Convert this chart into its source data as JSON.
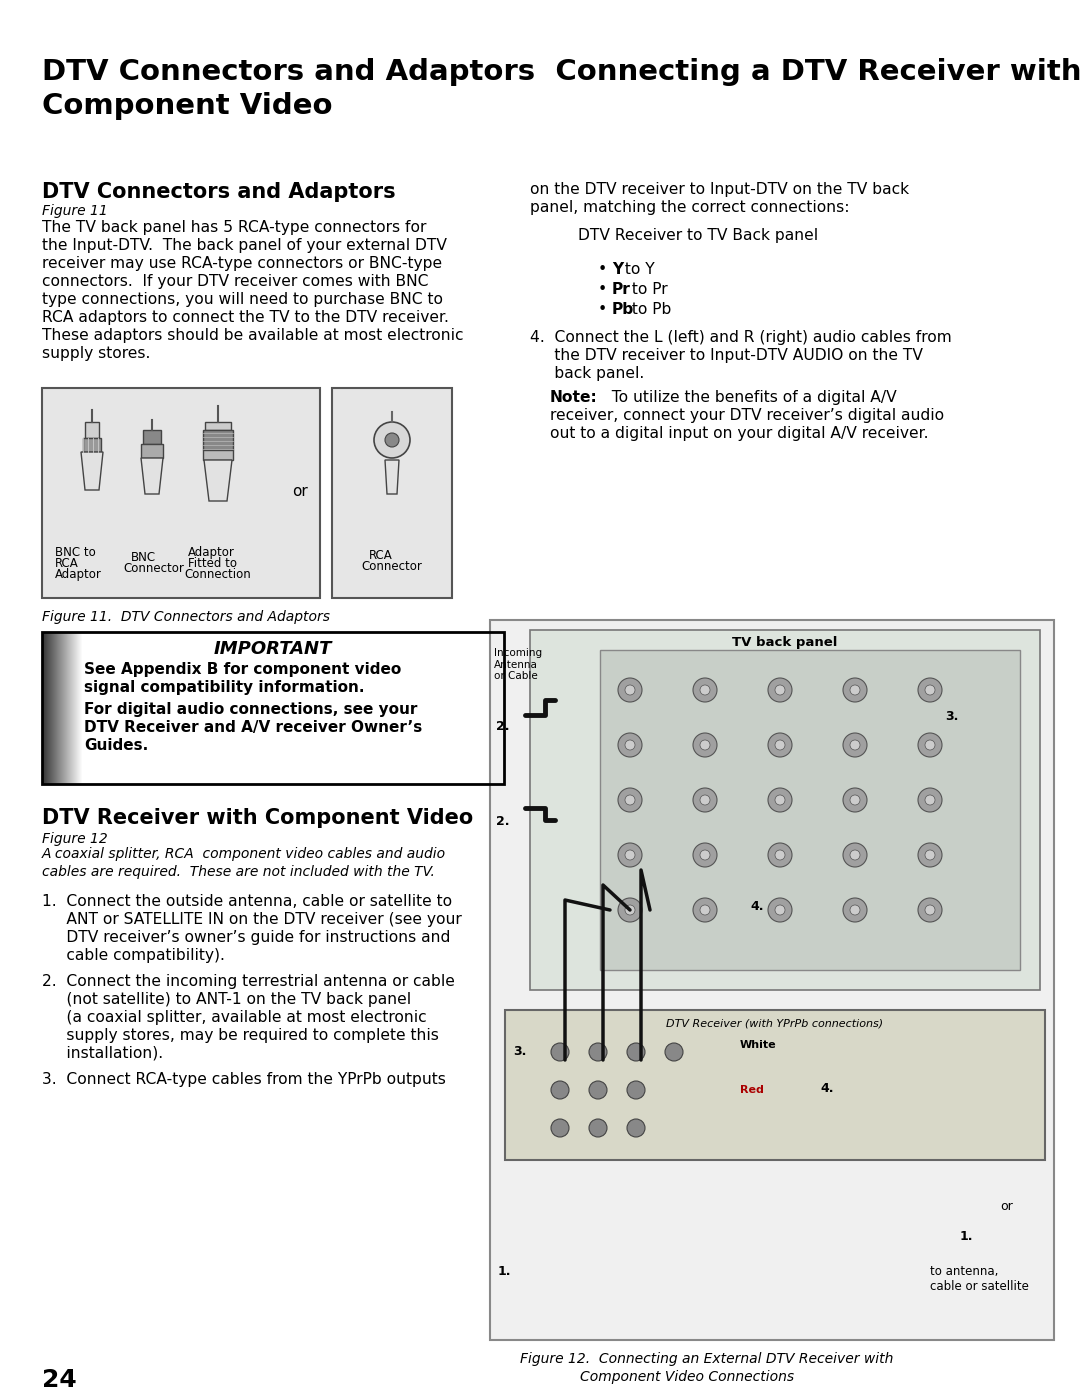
{
  "bg": "#ffffff",
  "title_line1": "DTV Connectors and Adaptors  Connecting a DTV Receiver with",
  "title_line2": "Component Video",
  "sec1_head": "DTV Connectors and Adaptors",
  "sec1_fig": "Figure 11",
  "sec1_body": [
    "The TV back panel has 5 RCA-type connectors for",
    "the Input-DTV.  The back panel of your external DTV",
    "receiver may use RCA-type connectors or BNC-type",
    "connectors.  If your DTV receiver comes with BNC",
    "type connections, you will need to purchase BNC to",
    "RCA adaptors to connect the TV to the DTV receiver.",
    "These adaptors should be available at most electronic",
    "supply stores."
  ],
  "fig11_cap": "Figure 11.  DTV Connectors and Adaptors",
  "imp_title": "IMPORTANT",
  "imp_b1_lines": [
    "See Appendix B for component video",
    "signal compatibility information."
  ],
  "imp_b2_lines": [
    "For digital audio connections, see your",
    "DTV Receiver and A/V receiver Owner’s",
    "Guides."
  ],
  "sec2_head": "DTV Receiver with Component Video",
  "sec2_fig": "Figure 12",
  "sec2_italic": [
    "A coaxial splitter, RCA  component video cables and audio",
    "cables are required.  These are not included with the TV."
  ],
  "step1": [
    "1.  Connect the outside antenna, cable or satellite to",
    "     ANT or SATELLITE IN on the DTV receiver (see your",
    "     DTV receiver’s owner’s guide for instructions and",
    "     cable compatibility)."
  ],
  "step2": [
    "2.  Connect the incoming terrestrial antenna or cable",
    "     (not satellite) to ANT-1 on the TV back panel",
    "     (a coaxial splitter, available at most electronic",
    "     supply stores, may be required to complete this",
    "     installation)."
  ],
  "step3_line": "3.  Connect RCA-type cables from the YPrPb outputs",
  "right_intro": [
    "on the DTV receiver to Input-DTV on the TV back",
    "panel, matching the correct connections:"
  ],
  "dtv_tv_label": "DTV Receiver to TV Back panel",
  "bullet_y": [
    "Y",
    "Pr",
    "Pb"
  ],
  "bullet_rest": [
    " to Y",
    " to Pr",
    " to Pb"
  ],
  "step4_lines": [
    "4.  Connect the L (left) and R (right) audio cables from",
    "     the DTV receiver to Input-DTV AUDIO on the TV",
    "     back panel."
  ],
  "note_head": "Note:",
  "note_body": [
    "  To utilize the benefits of a digital A/V",
    "receiver, connect your DTV receiver’s digital audio",
    "out to a digital input on your digital A/V receiver."
  ],
  "tv_panel_label": "TV back panel",
  "tv_inner_labels": [
    "Incoming\nAntenna\nor Cable"
  ],
  "dtv_recv_label": "DTV Receiver (with YPrPb connections)",
  "white_label": "White",
  "red_label": "Red",
  "fig12_cap1": "Figure 12.  Connecting an External DTV Receiver with",
  "fig12_cap2": "Component Video Connections",
  "page_num": "24",
  "or_text": "or",
  "to_antenna": "to antenna,",
  "cable_sat": "cable or satellite"
}
